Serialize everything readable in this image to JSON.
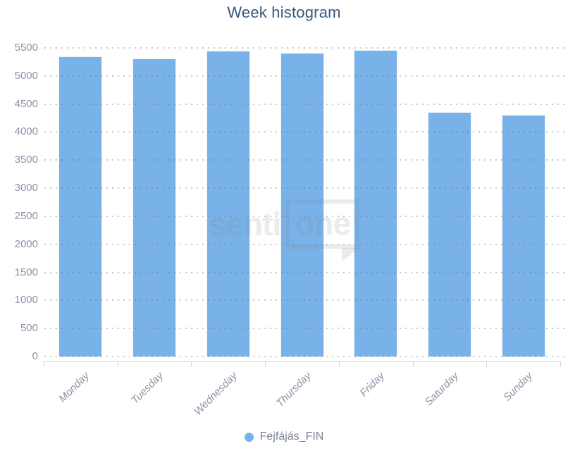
{
  "title": "Week histogram",
  "watermark": {
    "text_left": "senti",
    "text_boxed": "one"
  },
  "legend": {
    "items": [
      {
        "label": "Fejfájás_FIN",
        "color": "#79b2e8"
      }
    ]
  },
  "chart_data": {
    "type": "bar",
    "title": "Week histogram",
    "categories": [
      "Monday",
      "Tuesday",
      "Wednesday",
      "Thursday",
      "Friday",
      "Saturday",
      "Sunday"
    ],
    "series": [
      {
        "name": "Fejfájás_FIN",
        "color": "#79b2e8",
        "values": [
          5355,
          5310,
          5450,
          5415,
          5465,
          4355,
          4305
        ]
      }
    ],
    "xlabel": "",
    "ylabel": "",
    "ylim": [
      0,
      5500
    ],
    "ytick_step": 500,
    "yticks": [
      0,
      500,
      1000,
      1500,
      2000,
      2500,
      3000,
      3500,
      4000,
      4500,
      5000,
      5500
    ],
    "grid": "dotted-horizontal-over-bars",
    "legend_position": "bottom",
    "category_label_rotation": -45
  },
  "colors": {
    "background": "#ffffff",
    "title": "#35587a",
    "bar": "#79b2e8",
    "axis_labels": "#8b93a4",
    "axis_line": "#ccd5e2",
    "grid_dots": "#c6c6c6",
    "legend_text": "#7a8494"
  }
}
